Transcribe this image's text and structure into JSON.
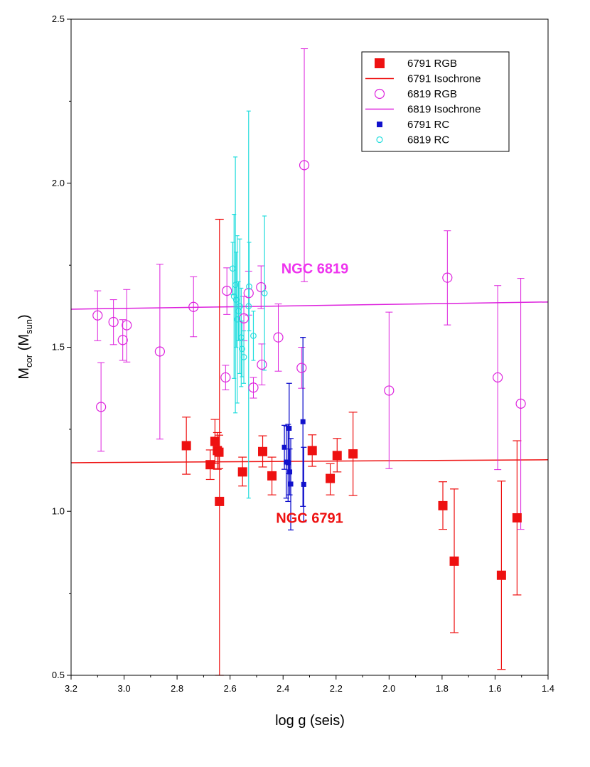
{
  "chart_data": {
    "type": "scatter",
    "title": "",
    "xlabel": "log g (seis)",
    "ylabel_main": "M",
    "ylabel_sub1": "cor",
    "ylabel_mid": " (M",
    "ylabel_sub2": "sun",
    "ylabel_end": ")",
    "xlim": [
      3.2,
      1.4
    ],
    "ylim": [
      0.5,
      2.5
    ],
    "xticks": [
      "3.2",
      "3.0",
      "2.8",
      "2.6",
      "2.4",
      "2.2",
      "2.0",
      "1.8",
      "1.6",
      "1.4"
    ],
    "yticks": [
      "0.5",
      "1.0",
      "1.5",
      "2.0",
      "2.5"
    ],
    "xtick_values": [
      3.2,
      3.0,
      2.8,
      2.6,
      2.4,
      2.2,
      2.0,
      1.8,
      1.6,
      1.4
    ],
    "ytick_values": [
      0.5,
      1.0,
      1.5,
      2.0,
      2.5
    ],
    "legend_position": "top-right",
    "colors": {
      "red": "#ee1111",
      "magenta": "#dd22dd",
      "blue": "#1111cc",
      "cyan": "#22dddd",
      "annotation_magenta": "#ee33ee",
      "annotation_red": "#ee1111"
    },
    "annotations": [
      {
        "text": "NGC 6819",
        "x": 2.28,
        "y": 1.725,
        "color": "annotation_magenta"
      },
      {
        "text": "NGC 6791",
        "x": 2.3,
        "y": 0.965,
        "color": "annotation_red"
      }
    ],
    "legend": [
      {
        "label": "6791 RGB",
        "kind": "filled-square",
        "color": "red"
      },
      {
        "label": "6791 Isochrone",
        "kind": "line",
        "color": "red"
      },
      {
        "label": "6819 RGB",
        "kind": "open-circle",
        "color": "magenta"
      },
      {
        "label": "6819 Isochrone",
        "kind": "line",
        "color": "magenta"
      },
      {
        "label": "6791 RC",
        "kind": "small-filled-square",
        "color": "blue"
      },
      {
        "label": "6819 RC",
        "kind": "small-open-circle",
        "color": "cyan"
      }
    ],
    "isochrones": [
      {
        "name": "6791 Isochrone",
        "color": "red",
        "points": [
          [
            3.2,
            1.148
          ],
          [
            1.4,
            1.157
          ]
        ]
      },
      {
        "name": "6819 Isochrone",
        "color": "magenta",
        "points": [
          [
            3.2,
            1.616
          ],
          [
            1.4,
            1.638
          ]
        ]
      }
    ],
    "series": [
      {
        "name": "6791 RGB",
        "marker": "filled-square",
        "color": "red",
        "points": [
          {
            "x": 2.765,
            "y": 1.2,
            "lo": 1.113,
            "hi": 1.287
          },
          {
            "x": 2.675,
            "y": 1.142,
            "lo": 1.097,
            "hi": 1.187
          },
          {
            "x": 2.657,
            "y": 1.213,
            "lo": 1.145,
            "hi": 1.28
          },
          {
            "x": 2.648,
            "y": 1.185,
            "lo": 1.128,
            "hi": 1.24
          },
          {
            "x": 2.642,
            "y": 1.18,
            "lo": 1.13,
            "hi": 1.232
          },
          {
            "x": 2.64,
            "y": 1.03,
            "lo": 0.5,
            "hi": 1.89
          },
          {
            "x": 2.553,
            "y": 1.12,
            "lo": 1.077,
            "hi": 1.165
          },
          {
            "x": 2.477,
            "y": 1.182,
            "lo": 1.135,
            "hi": 1.23
          },
          {
            "x": 2.442,
            "y": 1.108,
            "lo": 1.05,
            "hi": 1.165
          },
          {
            "x": 2.29,
            "y": 1.185,
            "lo": 1.137,
            "hi": 1.233
          },
          {
            "x": 2.222,
            "y": 1.1,
            "lo": 1.05,
            "hi": 1.145
          },
          {
            "x": 2.196,
            "y": 1.17,
            "lo": 1.12,
            "hi": 1.222
          },
          {
            "x": 2.136,
            "y": 1.175,
            "lo": 1.048,
            "hi": 1.302
          },
          {
            "x": 1.797,
            "y": 1.017,
            "lo": 0.945,
            "hi": 1.09
          },
          {
            "x": 1.754,
            "y": 0.848,
            "lo": 0.63,
            "hi": 1.068
          },
          {
            "x": 1.576,
            "y": 0.805,
            "lo": 0.518,
            "hi": 1.092
          },
          {
            "x": 1.517,
            "y": 0.98,
            "lo": 0.745,
            "hi": 1.215
          }
        ]
      },
      {
        "name": "6819 RGB",
        "marker": "open-circle",
        "color": "magenta",
        "points": [
          {
            "x": 3.1,
            "y": 1.597,
            "lo": 1.52,
            "hi": 1.672
          },
          {
            "x": 3.087,
            "y": 1.318,
            "lo": 1.183,
            "hi": 1.453
          },
          {
            "x": 3.04,
            "y": 1.577,
            "lo": 1.508,
            "hi": 1.645
          },
          {
            "x": 3.005,
            "y": 1.522,
            "lo": 1.46,
            "hi": 1.584
          },
          {
            "x": 2.99,
            "y": 1.567,
            "lo": 1.455,
            "hi": 1.676
          },
          {
            "x": 2.865,
            "y": 1.487,
            "lo": 1.22,
            "hi": 1.753
          },
          {
            "x": 2.738,
            "y": 1.623,
            "lo": 1.532,
            "hi": 1.715
          },
          {
            "x": 2.617,
            "y": 1.408,
            "lo": 1.37,
            "hi": 1.445
          },
          {
            "x": 2.612,
            "y": 1.672,
            "lo": 1.6,
            "hi": 1.742
          },
          {
            "x": 2.548,
            "y": 1.588,
            "lo": 1.52,
            "hi": 1.655
          },
          {
            "x": 2.53,
            "y": 1.665,
            "lo": 1.598,
            "hi": 1.732
          },
          {
            "x": 2.512,
            "y": 1.377,
            "lo": 1.345,
            "hi": 1.408
          },
          {
            "x": 2.483,
            "y": 1.683,
            "lo": 1.618,
            "hi": 1.748
          },
          {
            "x": 2.48,
            "y": 1.447,
            "lo": 1.385,
            "hi": 1.51
          },
          {
            "x": 2.418,
            "y": 1.53,
            "lo": 1.427,
            "hi": 1.632
          },
          {
            "x": 2.33,
            "y": 1.437,
            "lo": 1.375,
            "hi": 1.5
          },
          {
            "x": 2.32,
            "y": 2.055,
            "lo": 1.7,
            "hi": 2.41
          },
          {
            "x": 2.0,
            "y": 1.368,
            "lo": 1.13,
            "hi": 1.607
          },
          {
            "x": 1.78,
            "y": 1.712,
            "lo": 1.568,
            "hi": 1.855
          },
          {
            "x": 1.59,
            "y": 1.408,
            "lo": 1.127,
            "hi": 1.688
          },
          {
            "x": 1.503,
            "y": 1.328,
            "lo": 0.945,
            "hi": 1.71
          }
        ]
      },
      {
        "name": "6791 RC",
        "marker": "small-filled-square",
        "color": "blue",
        "points": [
          {
            "x": 2.395,
            "y": 1.195,
            "lo": 1.128,
            "hi": 1.262
          },
          {
            "x": 2.388,
            "y": 1.15,
            "lo": 1.04,
            "hi": 1.26
          },
          {
            "x": 2.381,
            "y": 1.148,
            "lo": 1.03,
            "hi": 1.265
          },
          {
            "x": 2.377,
            "y": 1.253,
            "lo": 1.115,
            "hi": 1.39
          },
          {
            "x": 2.375,
            "y": 1.12,
            "lo": 1.05,
            "hi": 1.19
          },
          {
            "x": 2.371,
            "y": 1.083,
            "lo": 0.943,
            "hi": 1.222
          },
          {
            "x": 2.325,
            "y": 1.273,
            "lo": 1.015,
            "hi": 1.53
          },
          {
            "x": 2.322,
            "y": 1.082,
            "lo": 0.968,
            "hi": 1.195
          }
        ]
      },
      {
        "name": "6819 RC",
        "marker": "small-open-circle",
        "color": "cyan",
        "points": [
          {
            "x": 2.59,
            "y": 1.74,
            "lo": 1.66,
            "hi": 1.82
          },
          {
            "x": 2.585,
            "y": 1.655,
            "lo": 1.405,
            "hi": 1.905
          },
          {
            "x": 2.58,
            "y": 1.69,
            "lo": 1.3,
            "hi": 2.08
          },
          {
            "x": 2.577,
            "y": 1.645,
            "lo": 1.5,
            "hi": 1.79
          },
          {
            "x": 2.573,
            "y": 1.585,
            "lo": 1.33,
            "hi": 1.84
          },
          {
            "x": 2.568,
            "y": 1.61,
            "lo": 1.52,
            "hi": 1.7
          },
          {
            "x": 2.563,
            "y": 1.625,
            "lo": 1.42,
            "hi": 1.83
          },
          {
            "x": 2.558,
            "y": 1.53,
            "lo": 1.38,
            "hi": 1.68
          },
          {
            "x": 2.555,
            "y": 1.495,
            "lo": 1.41,
            "hi": 1.58
          },
          {
            "x": 2.548,
            "y": 1.47,
            "lo": 1.39,
            "hi": 1.55
          },
          {
            "x": 2.53,
            "y": 1.625,
            "lo": 1.04,
            "hi": 2.22
          },
          {
            "x": 2.528,
            "y": 1.685,
            "lo": 1.55,
            "hi": 1.82
          },
          {
            "x": 2.512,
            "y": 1.535,
            "lo": 1.46,
            "hi": 1.61
          },
          {
            "x": 2.47,
            "y": 1.665,
            "lo": 1.43,
            "hi": 1.9
          }
        ]
      }
    ]
  }
}
